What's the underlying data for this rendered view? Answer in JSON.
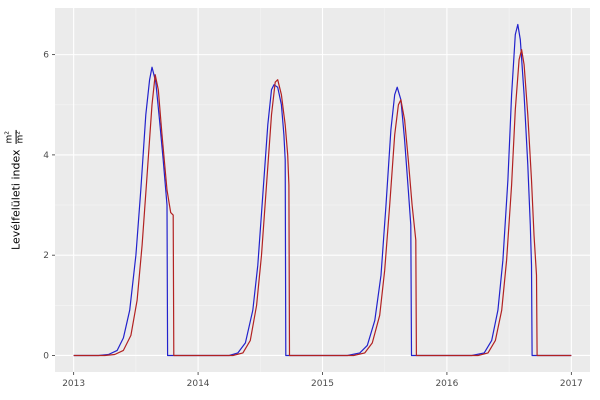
{
  "chart_data": {
    "type": "line",
    "title": "",
    "xlabel": "",
    "ylabel": "Levélfelületi index",
    "ylabel_unit": {
      "numerator": "m²",
      "denominator": "m²"
    },
    "xlim": [
      2012.85,
      2017.15
    ],
    "ylim": [
      -0.33,
      6.93
    ],
    "xticks": [
      2013,
      2014,
      2015,
      2016,
      2017
    ],
    "yticks": [
      0,
      2,
      4,
      6
    ],
    "x_minor": [
      2013.5,
      2014.5,
      2015.5,
      2016.5
    ],
    "y_minor": [
      1,
      3,
      5
    ],
    "panel_bg": "#EBEBEB",
    "grid_major_color": "#FFFFFF",
    "grid_minor_color": "#F5F5F5",
    "tick_label_color": "#4D4D4D",
    "tick_mark_color": "#333333",
    "legend": "none",
    "series": [
      {
        "name": "blue-series",
        "color": "#2222CC",
        "points": [
          [
            2013.0,
            0
          ],
          [
            2013.2,
            0
          ],
          [
            2013.28,
            0.02
          ],
          [
            2013.35,
            0.1
          ],
          [
            2013.4,
            0.35
          ],
          [
            2013.45,
            0.9
          ],
          [
            2013.5,
            2.0
          ],
          [
            2013.54,
            3.3
          ],
          [
            2013.58,
            4.8
          ],
          [
            2013.61,
            5.5
          ],
          [
            2013.63,
            5.75
          ],
          [
            2013.66,
            5.45
          ],
          [
            2013.69,
            4.7
          ],
          [
            2013.72,
            3.9
          ],
          [
            2013.75,
            3.0
          ],
          [
            2013.755,
            0
          ],
          [
            2013.9,
            0
          ],
          [
            2014.1,
            0
          ],
          [
            2014.25,
            0
          ],
          [
            2014.32,
            0.05
          ],
          [
            2014.38,
            0.25
          ],
          [
            2014.44,
            0.9
          ],
          [
            2014.48,
            1.8
          ],
          [
            2014.52,
            3.2
          ],
          [
            2014.56,
            4.6
          ],
          [
            2014.59,
            5.3
          ],
          [
            2014.61,
            5.4
          ],
          [
            2014.64,
            5.35
          ],
          [
            2014.67,
            5.0
          ],
          [
            2014.69,
            4.4
          ],
          [
            2014.7,
            3.9
          ],
          [
            2014.705,
            0
          ],
          [
            2014.9,
            0
          ],
          [
            2015.2,
            0
          ],
          [
            2015.3,
            0.05
          ],
          [
            2015.36,
            0.2
          ],
          [
            2015.42,
            0.7
          ],
          [
            2015.47,
            1.6
          ],
          [
            2015.51,
            3.0
          ],
          [
            2015.55,
            4.5
          ],
          [
            2015.58,
            5.2
          ],
          [
            2015.6,
            5.35
          ],
          [
            2015.63,
            5.1
          ],
          [
            2015.66,
            4.3
          ],
          [
            2015.69,
            3.3
          ],
          [
            2015.71,
            2.6
          ],
          [
            2015.715,
            0
          ],
          [
            2015.9,
            0
          ],
          [
            2016.2,
            0
          ],
          [
            2016.3,
            0.05
          ],
          [
            2016.36,
            0.3
          ],
          [
            2016.41,
            0.9
          ],
          [
            2016.45,
            1.9
          ],
          [
            2016.49,
            3.5
          ],
          [
            2016.52,
            5.2
          ],
          [
            2016.55,
            6.4
          ],
          [
            2016.57,
            6.6
          ],
          [
            2016.59,
            6.3
          ],
          [
            2016.62,
            5.2
          ],
          [
            2016.65,
            3.8
          ],
          [
            2016.67,
            2.6
          ],
          [
            2016.68,
            1.8
          ],
          [
            2016.685,
            0
          ],
          [
            2016.8,
            0
          ],
          [
            2017.0,
            0
          ]
        ]
      },
      {
        "name": "red-series",
        "color": "#B22222",
        "points": [
          [
            2013.0,
            0
          ],
          [
            2013.25,
            0
          ],
          [
            2013.33,
            0.02
          ],
          [
            2013.4,
            0.1
          ],
          [
            2013.46,
            0.4
          ],
          [
            2013.51,
            1.1
          ],
          [
            2013.55,
            2.2
          ],
          [
            2013.59,
            3.6
          ],
          [
            2013.63,
            5.0
          ],
          [
            2013.655,
            5.6
          ],
          [
            2013.68,
            5.3
          ],
          [
            2013.71,
            4.4
          ],
          [
            2013.75,
            3.3
          ],
          [
            2013.78,
            2.85
          ],
          [
            2013.8,
            2.8
          ],
          [
            2013.805,
            0
          ],
          [
            2014.0,
            0
          ],
          [
            2014.28,
            0
          ],
          [
            2014.36,
            0.05
          ],
          [
            2014.42,
            0.3
          ],
          [
            2014.47,
            1.0
          ],
          [
            2014.51,
            2.0
          ],
          [
            2014.55,
            3.4
          ],
          [
            2014.59,
            4.8
          ],
          [
            2014.62,
            5.45
          ],
          [
            2014.64,
            5.5
          ],
          [
            2014.67,
            5.2
          ],
          [
            2014.7,
            4.6
          ],
          [
            2014.72,
            4.0
          ],
          [
            2014.73,
            3.4
          ],
          [
            2014.735,
            0
          ],
          [
            2015.0,
            0
          ],
          [
            2015.25,
            0
          ],
          [
            2015.34,
            0.05
          ],
          [
            2015.4,
            0.25
          ],
          [
            2015.46,
            0.8
          ],
          [
            2015.5,
            1.7
          ],
          [
            2015.54,
            3.0
          ],
          [
            2015.58,
            4.4
          ],
          [
            2015.61,
            5.0
          ],
          [
            2015.63,
            5.1
          ],
          [
            2015.66,
            4.7
          ],
          [
            2015.69,
            3.9
          ],
          [
            2015.72,
            3.0
          ],
          [
            2015.75,
            2.3
          ],
          [
            2015.755,
            0
          ],
          [
            2016.0,
            0
          ],
          [
            2016.25,
            0
          ],
          [
            2016.33,
            0.05
          ],
          [
            2016.39,
            0.3
          ],
          [
            2016.44,
            0.9
          ],
          [
            2016.48,
            1.9
          ],
          [
            2016.52,
            3.4
          ],
          [
            2016.55,
            4.9
          ],
          [
            2016.58,
            5.9
          ],
          [
            2016.6,
            6.1
          ],
          [
            2016.62,
            5.8
          ],
          [
            2016.65,
            4.8
          ],
          [
            2016.68,
            3.5
          ],
          [
            2016.7,
            2.4
          ],
          [
            2016.72,
            1.6
          ],
          [
            2016.725,
            0
          ],
          [
            2016.9,
            0
          ],
          [
            2017.0,
            0
          ]
        ]
      }
    ]
  }
}
